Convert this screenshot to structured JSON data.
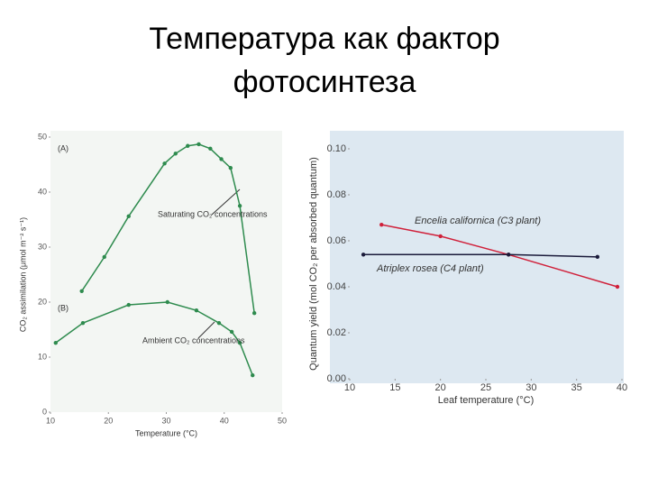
{
  "slide_title": [
    "Температура как фактор",
    "фотосинтеза"
  ],
  "chart_data": [
    {
      "type": "line",
      "xlabel": "Temperature (°C)",
      "ylabel": "CO₂ assimilation (μmol m⁻² s⁻¹)",
      "xlim": [
        10,
        50
      ],
      "xticks": [
        10,
        20,
        30,
        40,
        50
      ],
      "ylim": [
        0,
        50
      ],
      "yticks": [
        0,
        10,
        20,
        30,
        40,
        50
      ],
      "annotations": [
        "(A)",
        "(B)"
      ],
      "series": [
        {
          "name": "Saturating CO₂ concentrations",
          "color": "#2e8b4e",
          "x": [
            15.4,
            19.3,
            23.5,
            29.7,
            31.6,
            33.7,
            35.6,
            37.6,
            39.5,
            41.1,
            42.7,
            45.2
          ],
          "values": [
            22,
            28.2,
            35.6,
            45.2,
            47,
            48.4,
            48.7,
            47.9,
            46,
            44.4,
            37.5,
            18
          ]
        },
        {
          "name": "Ambient CO₂ concentrations",
          "color": "#2e8b4e",
          "x": [
            10.9,
            15.6,
            23.5,
            30.2,
            35.2,
            39.1,
            41.3,
            42.7,
            44.9
          ],
          "values": [
            12.6,
            16.2,
            19.5,
            20,
            18.5,
            16.2,
            14.6,
            12.6,
            6.7
          ]
        }
      ]
    },
    {
      "type": "line",
      "xlabel": "Leaf temperature (°C)",
      "ylabel": "Quantum yield (mol CO₂ per absorbed quantum)",
      "xlim": [
        10,
        40
      ],
      "xticks": [
        10,
        15,
        20,
        25,
        30,
        35,
        40
      ],
      "ylim": [
        0,
        0.1
      ],
      "yticks": [
        {
          "value": 0,
          "label": "0.00"
        },
        {
          "value": 0.02,
          "label": "0.02"
        },
        {
          "value": 0.04,
          "label": "0.04"
        },
        {
          "value": 0.06,
          "label": "0.06"
        },
        {
          "value": 0.08,
          "label": "0.08"
        },
        {
          "value": 0.1,
          "label": "0.10"
        }
      ],
      "series": [
        {
          "name": "Encelia californica (C3 plant)",
          "color": "#d0203a",
          "x": [
            13.5,
            20,
            27.5,
            39.5
          ],
          "values": [
            0.067,
            0.062,
            0.054,
            0.04
          ]
        },
        {
          "name": "Atriplex rosea (C4 plant)",
          "color": "#1a1a3a",
          "x": [
            11.5,
            27.5,
            37.3
          ],
          "values": [
            0.054,
            0.054,
            0.053
          ]
        }
      ]
    }
  ]
}
